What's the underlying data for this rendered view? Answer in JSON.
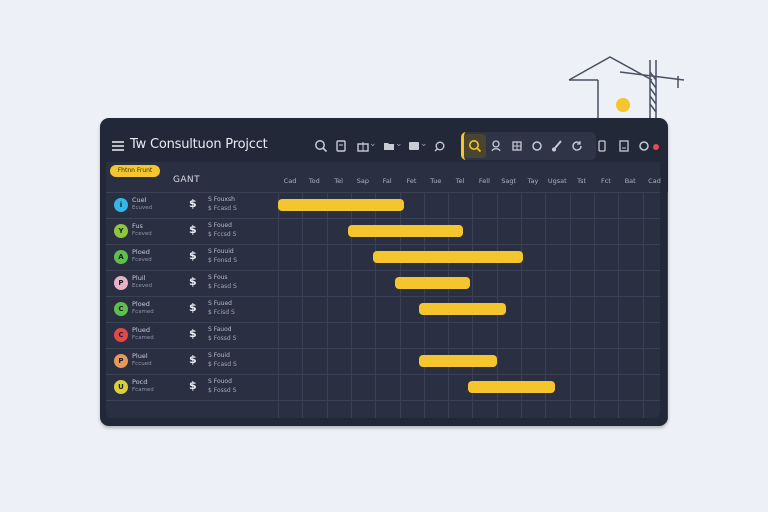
{
  "header": {
    "title": "Tw Consultuon Projcct"
  },
  "filter_pill": "Fhtnn Frunt",
  "gantt_label": "GANT",
  "days": [
    "Cad",
    "Tod",
    "Tel",
    "Sap",
    "Fal",
    "Fet",
    "Tue",
    "Tel",
    "Fell",
    "Sagt",
    "Tay",
    "Ugsat",
    "Tst",
    "Fct",
    "Bat",
    "Cad"
  ],
  "icons": {
    "menu": "hamburger-icon",
    "toolbar": [
      "search-icon",
      "clipboard-icon",
      "gift-icon",
      "folder-icon",
      "window-icon",
      "link-icon",
      "search-icon",
      "user-search-icon",
      "grid-icon",
      "circle-icon",
      "brush-icon",
      "refresh-icon",
      "phone-icon",
      "download-icon",
      "notification-icon"
    ]
  },
  "colors": {
    "accent": "#f4c52c",
    "window_bg": "#232839",
    "notification": "#e84a4a"
  },
  "rows": [
    {
      "avatar_letter": "i",
      "avatar_color": "#33b6e8",
      "name": "Cuel",
      "sub": "Ecuved",
      "dollar": "$",
      "amt1": "S  Fouxsh",
      "amt2": "$  Fcasd  S"
    },
    {
      "avatar_letter": "Y",
      "avatar_color": "#8cc63f",
      "name": "Fus",
      "sub": "Fceved",
      "dollar": "$",
      "amt1": "S  Foued",
      "amt2": "$  Fccsd  S"
    },
    {
      "avatar_letter": "A",
      "avatar_color": "#5cc04a",
      "name": "Ploed",
      "sub": "Fceved",
      "dollar": "$",
      "amt1": "S  Fouuid",
      "amt2": "$  Fonsd  S"
    },
    {
      "avatar_letter": "P",
      "avatar_color": "#e6b4c4",
      "name": "Pluil",
      "sub": "Eceved",
      "dollar": "$",
      "amt1": "S  Fous",
      "amt2": "$  Fcasd  S"
    },
    {
      "avatar_letter": "C",
      "avatar_color": "#5cc04a",
      "name": "Ploed",
      "sub": "Fcamed",
      "dollar": "$",
      "amt1": "S  Fuued",
      "amt2": "$  Fcisd  S"
    },
    {
      "avatar_letter": "C",
      "avatar_color": "#e64848",
      "name": "Plued",
      "sub": "Fcamed",
      "dollar": "$",
      "amt1": "S  Fauod",
      "amt2": "$  Fossd  S"
    },
    {
      "avatar_letter": "P",
      "avatar_color": "#e39a5c",
      "name": "Pluel",
      "sub": "Fccued",
      "dollar": "$",
      "amt1": "S  Fouid",
      "amt2": "$  Fcasd  S"
    },
    {
      "avatar_letter": "U",
      "avatar_color": "#d8d03a",
      "name": "Pocd",
      "sub": "Fcamed",
      "dollar": "$",
      "amt1": "S  Fouod",
      "amt2": "$  Fossd  S"
    }
  ],
  "tasks": [
    {
      "row": 0,
      "start": 0,
      "end": 5.2
    },
    {
      "row": 1,
      "start": 2.9,
      "end": 7.6
    },
    {
      "row": 2,
      "start": 3.9,
      "end": 10.1
    },
    {
      "row": 3,
      "start": 4.8,
      "end": 7.9
    },
    {
      "row": 4,
      "start": 5.8,
      "end": 9.4
    },
    {
      "row": 6,
      "start": 5.8,
      "end": 9.0
    },
    {
      "row": 7,
      "start": 7.8,
      "end": 11.4
    }
  ]
}
